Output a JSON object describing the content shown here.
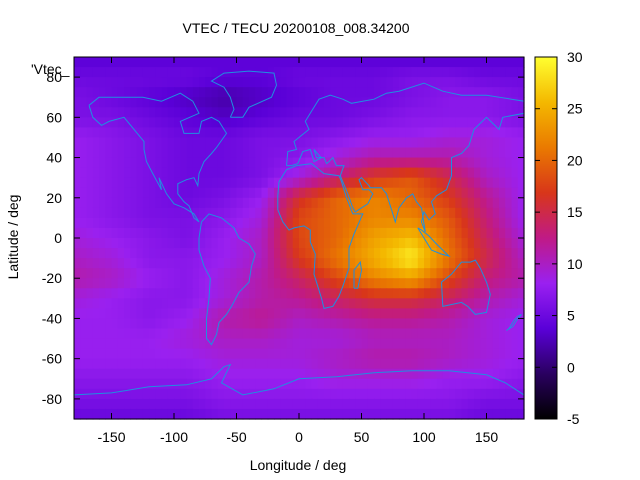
{
  "chart_data": {
    "type": "heatmap",
    "title": "VTEC / TECU 20200108_008.34200",
    "corner_label": "'Vtec_",
    "xlabel": "Longitude / deg",
    "ylabel": "Latitude / deg",
    "xlim": [
      -180,
      180
    ],
    "ylim": [
      -90,
      90
    ],
    "x_ticks": [
      -150,
      -100,
      -50,
      0,
      50,
      100,
      150
    ],
    "y_ticks": [
      -80,
      -60,
      -40,
      -20,
      0,
      20,
      40,
      60,
      80
    ],
    "colorbar": {
      "range": [
        -5,
        30
      ],
      "ticks": [
        -5,
        0,
        5,
        10,
        15,
        20,
        25,
        30
      ],
      "palette": [
        "#000000",
        "#2a0060",
        "#5a00d8",
        "#9a20f0",
        "#c01a86",
        "#d8361a",
        "#ea7a00",
        "#f4b800",
        "#ffff30"
      ]
    },
    "coastline_color": "#1f8fe0",
    "grid_step_deg": 5,
    "sampled_grid": {
      "lat_lines": [
        87.5,
        80,
        70,
        60,
        50,
        40,
        30,
        20,
        10,
        0,
        -10,
        -20,
        -30,
        -40,
        -50,
        -60,
        -70,
        -80,
        -87.5
      ],
      "lon_lines": [
        -180,
        -150,
        -120,
        -90,
        -60,
        -30,
        0,
        30,
        60,
        90,
        120,
        150,
        180
      ],
      "values": [
        [
          4,
          4,
          4,
          4,
          4,
          4,
          4,
          4,
          4,
          4,
          4,
          4,
          4
        ],
        [
          5,
          5,
          5,
          5,
          4,
          4,
          5,
          5,
          5,
          6,
          6,
          5,
          5
        ],
        [
          6,
          5,
          4,
          3,
          2,
          3,
          4,
          5,
          5,
          6,
          7,
          7,
          6
        ],
        [
          6,
          6,
          5,
          4,
          3,
          4,
          5,
          5,
          6,
          7,
          7,
          7,
          6
        ],
        [
          8,
          7,
          6,
          5,
          5,
          6,
          6,
          7,
          8,
          8,
          9,
          9,
          8
        ],
        [
          8,
          7,
          6,
          5,
          5,
          6,
          7,
          9,
          11,
          11,
          11,
          9,
          8
        ],
        [
          8,
          7,
          6,
          5,
          5,
          6,
          9,
          13,
          17,
          19,
          15,
          10,
          8
        ],
        [
          8,
          7,
          6,
          5,
          6,
          8,
          16,
          20,
          22,
          20,
          17,
          12,
          8
        ],
        [
          8,
          7,
          6,
          6,
          7,
          9,
          18,
          20,
          22,
          22,
          19,
          13,
          8
        ],
        [
          9,
          8,
          7,
          6,
          8,
          10,
          18,
          20,
          24,
          26,
          20,
          14,
          9
        ],
        [
          10,
          9,
          7,
          7,
          8,
          10,
          17,
          21,
          25,
          29,
          21,
          15,
          10
        ],
        [
          11,
          10,
          8,
          7,
          9,
          11,
          14,
          18,
          22,
          24,
          18,
          13,
          11
        ],
        [
          9,
          8,
          7,
          7,
          9,
          11,
          12,
          14,
          16,
          16,
          14,
          11,
          9
        ],
        [
          8,
          8,
          7,
          8,
          11,
          12,
          10,
          11,
          12,
          12,
          11,
          9,
          8
        ],
        [
          8,
          8,
          8,
          9,
          10,
          10,
          9,
          9,
          10,
          10,
          10,
          9,
          8
        ],
        [
          8,
          8,
          8,
          8,
          9,
          9,
          9,
          10,
          11,
          11,
          10,
          9,
          8
        ],
        [
          7,
          7,
          7,
          7,
          8,
          8,
          8,
          9,
          9,
          9,
          8,
          8,
          7
        ],
        [
          6,
          6,
          6,
          6,
          7,
          7,
          7,
          7,
          7,
          7,
          7,
          6,
          6
        ],
        [
          5,
          5,
          5,
          5,
          6,
          6,
          6,
          6,
          6,
          6,
          6,
          5,
          5
        ]
      ]
    }
  }
}
